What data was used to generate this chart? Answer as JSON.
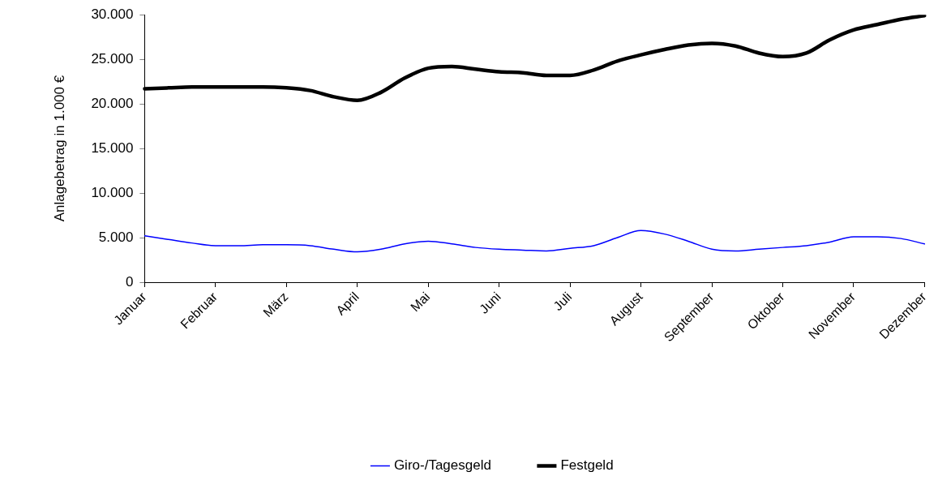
{
  "chart_data": {
    "type": "line",
    "ylabel": "Anlagebetrag in 1.000 €",
    "categories": [
      "Januar",
      null,
      null,
      "Februar",
      null,
      null,
      "März",
      null,
      null,
      "April",
      null,
      null,
      "Mai",
      null,
      null,
      "Juni",
      null,
      null,
      "Juli",
      null,
      null,
      "August",
      null,
      null,
      "September",
      null,
      null,
      "Oktober",
      null,
      null,
      "November",
      null,
      null,
      "Dezember"
    ],
    "ylim": [
      0,
      30000
    ],
    "yticks": [
      {
        "value": 0,
        "label": "0"
      },
      {
        "value": 5000,
        "label": "5.000"
      },
      {
        "value": 10000,
        "label": "10.000"
      },
      {
        "value": 15000,
        "label": "15.000"
      },
      {
        "value": 20000,
        "label": "20.000"
      },
      {
        "value": 25000,
        "label": "25.000"
      },
      {
        "value": 30000,
        "label": "30.000"
      }
    ],
    "grid": false,
    "legend": "bottom",
    "series": [
      {
        "name": "Giro-/Tagesgeld",
        "color": "#0000ff",
        "values": [
          5200,
          4800,
          4400,
          4100,
          4100,
          4200,
          4200,
          4100,
          3700,
          3400,
          3700,
          4300,
          4600,
          4300,
          3900,
          3700,
          3600,
          3500,
          3800,
          4100,
          5000,
          5800,
          5400,
          4600,
          3700,
          3500,
          3700,
          3900,
          4100,
          4500,
          5100,
          5100,
          4900,
          4300
        ]
      },
      {
        "name": "Festgeld",
        "color": "#000000",
        "values": [
          21700,
          21800,
          21900,
          21900,
          21900,
          21900,
          21800,
          21500,
          20800,
          20400,
          21300,
          22900,
          24000,
          24200,
          23900,
          23600,
          23500,
          23200,
          23200,
          23800,
          24800,
          25500,
          26100,
          26600,
          26800,
          26500,
          25700,
          25300,
          25700,
          27200,
          28300,
          28900,
          29500,
          29900
        ]
      }
    ]
  }
}
